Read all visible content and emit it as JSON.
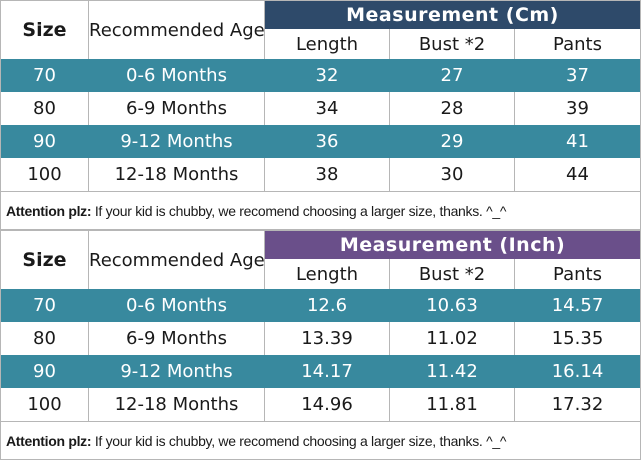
{
  "colors": {
    "navy_header": "#2e4a6a",
    "teal_row": "#38899e",
    "purple_header": "#6a4f8a",
    "grid_border": "#b6b6b6",
    "text": "#1a1a1a",
    "text_on_fill": "#ffffff"
  },
  "tables": [
    {
      "title": "Measurement (Cm)",
      "size_header": "Size",
      "age_header": "Recommended Age",
      "col_headers": [
        "Length",
        "Bust *2",
        "Pants"
      ],
      "rows": [
        {
          "size": "70",
          "age": "0-6 Months",
          "vals": [
            "32",
            "27",
            "37"
          ]
        },
        {
          "size": "80",
          "age": "6-9 Months",
          "vals": [
            "34",
            "28",
            "39"
          ]
        },
        {
          "size": "90",
          "age": "9-12 Months",
          "vals": [
            "36",
            "29",
            "41"
          ]
        },
        {
          "size": "100",
          "age": "12-18 Months",
          "vals": [
            "38",
            "30",
            "44"
          ]
        }
      ],
      "note_bold": "Attention plz:",
      "note_text": "If your kid is chubby, we recomend choosing a larger size, thanks. ^_^"
    },
    {
      "title": "Measurement (Inch)",
      "size_header": "Size",
      "age_header": "Recommended Age",
      "col_headers": [
        "Length",
        "Bust *2",
        "Pants"
      ],
      "rows": [
        {
          "size": "70",
          "age": "0-6 Months",
          "vals": [
            "12.6",
            "10.63",
            "14.57"
          ]
        },
        {
          "size": "80",
          "age": "6-9 Months",
          "vals": [
            "13.39",
            "11.02",
            "15.35"
          ]
        },
        {
          "size": "90",
          "age": "9-12 Months",
          "vals": [
            "14.17",
            "11.42",
            "16.14"
          ]
        },
        {
          "size": "100",
          "age": "12-18 Months",
          "vals": [
            "14.96",
            "11.81",
            "17.32"
          ]
        }
      ],
      "note_bold": "Attention plz:",
      "note_text": "If your kid is chubby, we recomend choosing a larger size, thanks. ^_^"
    }
  ],
  "chart_data": [
    {
      "type": "table",
      "title": "Measurement (Cm)",
      "columns": [
        "Size",
        "Recommended Age",
        "Length",
        "Bust *2",
        "Pants"
      ],
      "rows": [
        [
          "70",
          "0-6 Months",
          32,
          27,
          37
        ],
        [
          "80",
          "6-9 Months",
          34,
          28,
          39
        ],
        [
          "90",
          "9-12 Months",
          36,
          29,
          41
        ],
        [
          "100",
          "12-18 Months",
          38,
          30,
          44
        ]
      ],
      "footnote": "Attention plz: If your kid is chubby, we recomend choosing a larger size, thanks. ^_^"
    },
    {
      "type": "table",
      "title": "Measurement (Inch)",
      "columns": [
        "Size",
        "Recommended Age",
        "Length",
        "Bust *2",
        "Pants"
      ],
      "rows": [
        [
          "70",
          "0-6 Months",
          12.6,
          10.63,
          14.57
        ],
        [
          "80",
          "6-9 Months",
          13.39,
          11.02,
          15.35
        ],
        [
          "90",
          "9-12 Months",
          14.17,
          11.42,
          16.14
        ],
        [
          "100",
          "12-18 Months",
          14.96,
          11.81,
          17.32
        ]
      ],
      "footnote": "Attention plz: If your kid is chubby, we recomend choosing a larger size, thanks. ^_^"
    }
  ]
}
